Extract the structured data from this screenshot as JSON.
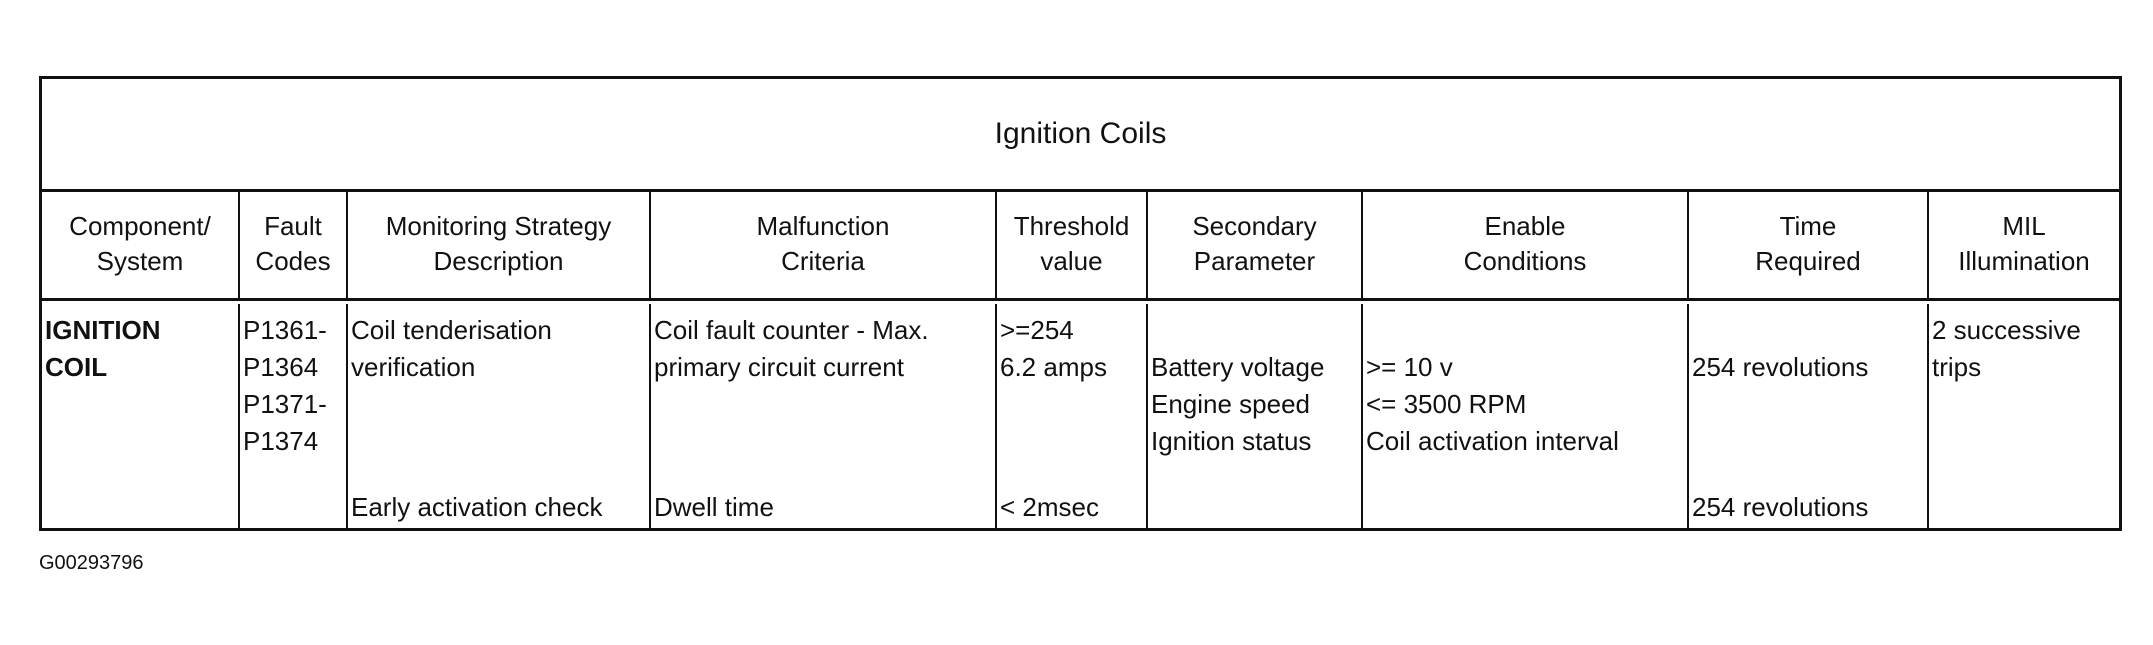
{
  "title": "Ignition Coils",
  "headers": [
    [
      "Component/",
      "System"
    ],
    [
      "Fault",
      "Codes"
    ],
    [
      "Monitoring Strategy",
      "Description"
    ],
    [
      "Malfunction",
      "Criteria"
    ],
    [
      "Threshold",
      "value"
    ],
    [
      "Secondary",
      "Parameter"
    ],
    [
      "Enable",
      "Conditions"
    ],
    [
      "Time",
      "Required"
    ],
    [
      "MIL",
      "Illumination"
    ]
  ],
  "row": {
    "component": [
      "IGNITION",
      "COIL"
    ],
    "fault_codes": [
      "P1361-",
      "P1364",
      "P1371-",
      "P1374"
    ],
    "checks": [
      {
        "strategy": [
          "Coil tenderisation",
          "verification"
        ],
        "criteria": [
          "Coil fault counter - Max.",
          "primary circuit current"
        ],
        "threshold": [
          ">=254",
          "6.2 amps"
        ],
        "secondary": [
          "Battery voltage",
          "Engine speed",
          "Ignition status"
        ],
        "enable": [
          ">= 10 v",
          "<= 3500 RPM",
          "Coil activation interval"
        ],
        "time": [
          "254 revolutions"
        ]
      },
      {
        "strategy": [
          "Early activation check"
        ],
        "criteria": [
          "Dwell time"
        ],
        "threshold": [
          "< 2msec"
        ],
        "time": [
          "254 revolutions"
        ]
      }
    ],
    "mil": [
      "2 successive",
      "trips"
    ]
  },
  "footer_id": "G00293796"
}
